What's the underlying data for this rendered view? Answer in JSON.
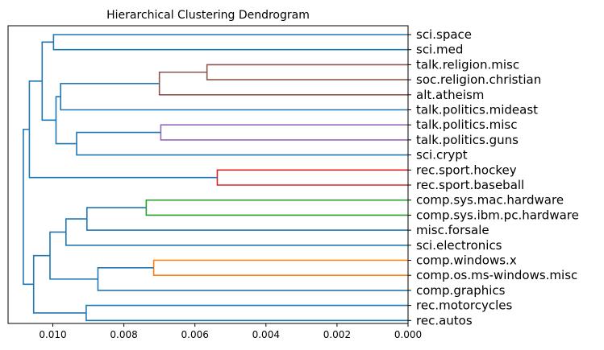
{
  "chart_data": {
    "type": "dendrogram",
    "title": "Hierarchical Clustering Dendrogram",
    "orientation": "left",
    "xlim": [
      0.01126,
      0.0
    ],
    "xticks": [
      {
        "value": 0.01,
        "label": "0.010"
      },
      {
        "value": 0.008,
        "label": "0.008"
      },
      {
        "value": 0.006,
        "label": "0.006"
      },
      {
        "value": 0.004,
        "label": "0.004"
      },
      {
        "value": 0.002,
        "label": "0.002"
      },
      {
        "value": 0.0,
        "label": "0.000"
      }
    ],
    "leaves": [
      "sci.space",
      "sci.med",
      "talk.religion.misc",
      "soc.religion.christian",
      "alt.atheism",
      "talk.politics.mideast",
      "talk.politics.misc",
      "talk.politics.guns",
      "sci.crypt",
      "rec.sport.hockey",
      "rec.sport.baseball",
      "comp.sys.mac.hardware",
      "comp.sys.ibm.pc.hardware",
      "misc.forsale",
      "sci.electronics",
      "comp.windows.x",
      "comp.os.ms-windows.misc",
      "comp.graphics",
      "rec.motorcycles",
      "rec.autos"
    ],
    "colors": {
      "default": "#1f77b4",
      "brown": "#8c564b",
      "purple": "#9467bd",
      "red": "#d62728",
      "green": "#2ca02c",
      "orange": "#ff7f0e"
    },
    "merges": [
      {
        "id": "m1",
        "children": [
          0,
          1
        ],
        "distance": 0.00998,
        "color": "default"
      },
      {
        "id": "m2",
        "children": [
          2,
          3
        ],
        "distance": 0.00566,
        "color": "brown"
      },
      {
        "id": "m3",
        "children": [
          "m2",
          4
        ],
        "distance": 0.007,
        "color": "brown"
      },
      {
        "id": "m4",
        "children": [
          "m3",
          5
        ],
        "distance": 0.00978,
        "color": "default"
      },
      {
        "id": "m5",
        "children": [
          6,
          7
        ],
        "distance": 0.00696,
        "color": "purple"
      },
      {
        "id": "m6",
        "children": [
          "m5",
          8
        ],
        "distance": 0.00933,
        "color": "default"
      },
      {
        "id": "m7",
        "children": [
          "m4",
          "m6"
        ],
        "distance": 0.00991,
        "color": "default"
      },
      {
        "id": "m8",
        "children": [
          "m1",
          "m7"
        ],
        "distance": 0.0103,
        "color": "default"
      },
      {
        "id": "m9",
        "children": [
          9,
          10
        ],
        "distance": 0.00537,
        "color": "red"
      },
      {
        "id": "m10",
        "children": [
          "m8",
          "m9"
        ],
        "distance": 0.01066,
        "color": "default"
      },
      {
        "id": "m11",
        "children": [
          11,
          12
        ],
        "distance": 0.00737,
        "color": "green"
      },
      {
        "id": "m12",
        "children": [
          "m11",
          13
        ],
        "distance": 0.00904,
        "color": "default"
      },
      {
        "id": "m13",
        "children": [
          "m12",
          14
        ],
        "distance": 0.00963,
        "color": "default"
      },
      {
        "id": "m14",
        "children": [
          15,
          16
        ],
        "distance": 0.00716,
        "color": "orange"
      },
      {
        "id": "m15",
        "children": [
          "m14",
          17
        ],
        "distance": 0.00873,
        "color": "default"
      },
      {
        "id": "m16",
        "children": [
          "m13",
          "m15"
        ],
        "distance": 0.01008,
        "color": "default"
      },
      {
        "id": "m17",
        "children": [
          18,
          19
        ],
        "distance": 0.00906,
        "color": "default"
      },
      {
        "id": "m18",
        "children": [
          "m16",
          "m17"
        ],
        "distance": 0.01054,
        "color": "default"
      },
      {
        "id": "m19",
        "children": [
          "m10",
          "m18"
        ],
        "distance": 0.01083,
        "color": "default"
      }
    ]
  }
}
